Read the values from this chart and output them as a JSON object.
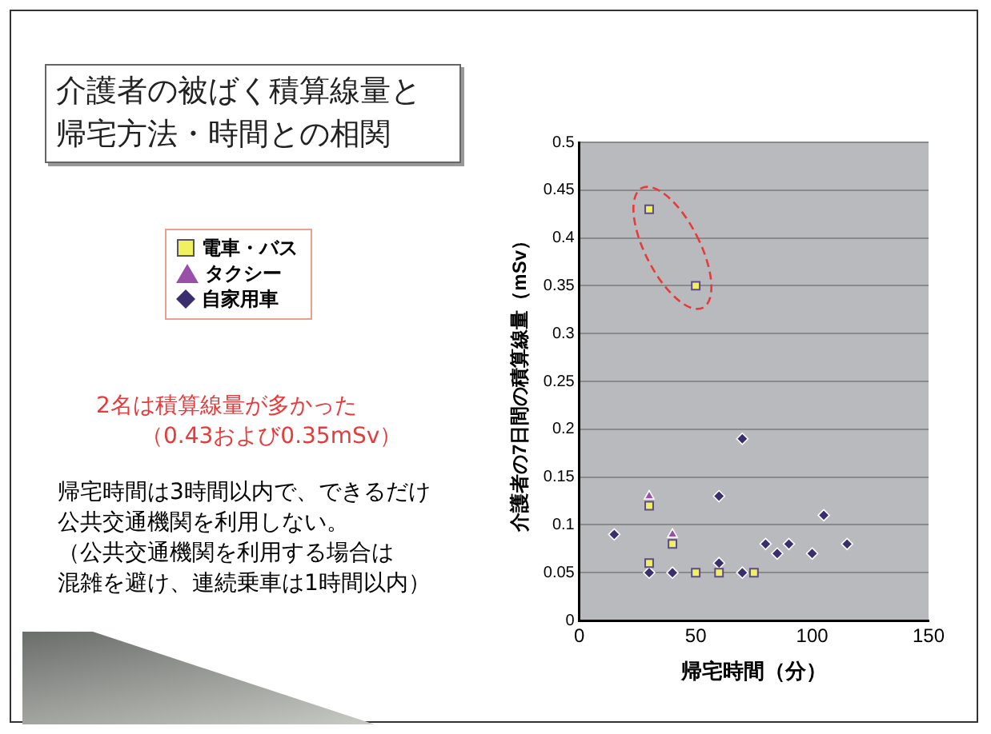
{
  "chart_data": {
    "type": "scatter",
    "title": "介護者の被ばく積算線量と帰宅方法・時間との相関",
    "xlabel": "帰宅時間（分）",
    "ylabel": "介護者の7日間の積算線量（mSv）",
    "xlim": [
      0,
      150
    ],
    "xticks": [
      0,
      50,
      100,
      150
    ],
    "ylim": [
      0,
      0.5
    ],
    "yticks": [
      0,
      0.05,
      0.1,
      0.15,
      0.2,
      0.25,
      0.3,
      0.35,
      0.4,
      0.45,
      0.5
    ],
    "grid": "y",
    "legend": "left",
    "series": [
      {
        "name": "電車・バス",
        "color": "#f0f060",
        "marker": "square",
        "x": [
          30,
          50,
          30,
          40,
          30,
          50,
          60,
          75
        ],
        "values": [
          0.43,
          0.35,
          0.12,
          0.08,
          0.06,
          0.05,
          0.05,
          0.05
        ]
      },
      {
        "name": "タクシー",
        "color": "#9a50a8",
        "marker": "triangle",
        "x": [
          30,
          40
        ],
        "values": [
          0.13,
          0.09
        ]
      },
      {
        "name": "自家用車",
        "color": "#3a2e6e",
        "marker": "diamond",
        "x": [
          15,
          30,
          40,
          60,
          60,
          70,
          70,
          80,
          85,
          90,
          100,
          105,
          115
        ],
        "values": [
          0.09,
          0.05,
          0.05,
          0.13,
          0.06,
          0.19,
          0.05,
          0.08,
          0.07,
          0.08,
          0.07,
          0.11,
          0.08
        ]
      }
    ],
    "annotations": [
      "2名は積算線量が多かった",
      "（0.43および0.35mSv）",
      "帰宅時間は3時間以内で、できるだけ",
      "公共交通機関を利用しない。",
      "（公共交通機関を利用する場合は",
      "混雑を避け、連続乗車は1時間以内）"
    ]
  }
}
